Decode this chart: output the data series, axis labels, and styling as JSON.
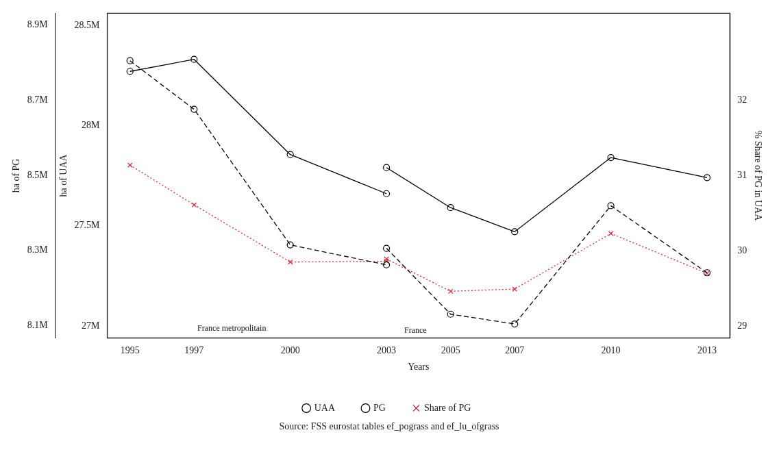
{
  "chart_data": {
    "type": "line",
    "xlabel": "Years",
    "ylabel": "ha of UAA",
    "y2label": "% Share of PG in UAA",
    "y3label": "ha of PG",
    "xlim": [
      1994.29,
      2013.71
    ],
    "xticks": [
      1995,
      1997,
      2000,
      2003,
      2005,
      2007,
      2010,
      2013
    ],
    "ylim": [
      26940000,
      28560000
    ],
    "yticks": [
      {
        "value": 27000000,
        "label": "27M"
      },
      {
        "value": 27500000,
        "label": "27.5M"
      },
      {
        "value": 28000000,
        "label": "28M"
      },
      {
        "value": 28500000,
        "label": "28.5M"
      }
    ],
    "y2lim": [
      28.84,
      33.16
    ],
    "y2ticks": [
      29,
      30,
      31,
      32
    ],
    "y3lim": [
      8068000,
      8930000
    ],
    "y3ticks": [
      {
        "value": 8100000,
        "label": "8.1M"
      },
      {
        "value": 8300000,
        "label": "8.3M"
      },
      {
        "value": 8500000,
        "label": "8.5M"
      },
      {
        "value": 8700000,
        "label": "8.7M"
      },
      {
        "value": 8900000,
        "label": "8.9M"
      }
    ],
    "grid": false,
    "legend": "bottom",
    "series": [
      {
        "name": "UAA",
        "color": "#000000",
        "line_style": "solid",
        "marker": "circle",
        "x": [
          1995,
          1997,
          2000,
          2003
        ],
        "values": [
          28270000,
          28330000,
          27855000,
          27660000
        ]
      },
      {
        "color": "#000000",
        "line_style": "solid",
        "marker": "circle",
        "x": [
          2003,
          2005,
          2007,
          2010,
          2013
        ],
        "values": [
          27790000,
          27590000,
          27470000,
          27840000,
          27740000
        ]
      },
      {
        "name": "PG",
        "color": "#000000",
        "line_style": "dashed",
        "marker": "circle",
        "axis": "y3",
        "x": [
          1995,
          1997,
          2000,
          2003
        ],
        "values": [
          8804000,
          8675000,
          8315000,
          8262000
        ]
      },
      {
        "color": "#000000",
        "line_style": "dashed",
        "marker": "circle",
        "axis": "y3",
        "x": [
          2003,
          2005,
          2007,
          2010,
          2013
        ],
        "values": [
          8306000,
          8131000,
          8105000,
          8419000,
          8241000
        ]
      },
      {
        "name": "Share of PG",
        "color": "#e02030",
        "line_style": "dotted",
        "marker": "cross",
        "axis": "y2",
        "x": [
          1995,
          1997,
          2000,
          2003
        ],
        "values": [
          31.14,
          30.61,
          29.85,
          29.86
        ]
      },
      {
        "color": "#e02030",
        "line_style": "dotted",
        "marker": "cross",
        "axis": "y2",
        "x": [
          2003,
          2005,
          2007,
          2010,
          2013
        ],
        "values": [
          29.89,
          29.46,
          29.49,
          30.23,
          29.7
        ]
      }
    ],
    "annotations": [
      "France metropolitain",
      "France",
      "Source: FSS eurostat tables ef_pograss and ef_lu_ofgrass"
    ]
  }
}
